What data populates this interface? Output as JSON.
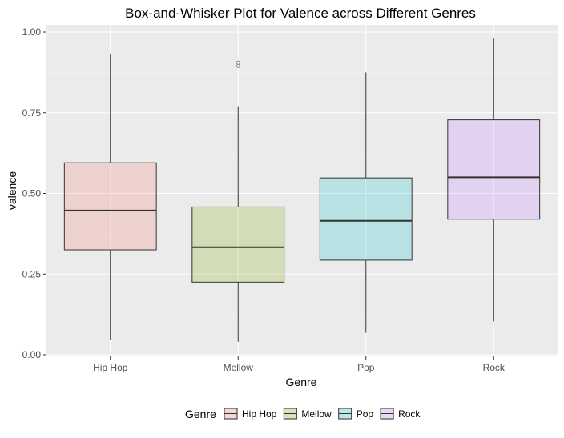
{
  "chart_data": {
    "type": "box",
    "title": "Box-and-Whisker Plot for Valence across Different Genres",
    "xlabel": "Genre",
    "ylabel": "valence",
    "ylim": [
      0.0,
      1.0
    ],
    "yticks": [
      "0.00",
      "0.25",
      "0.50",
      "0.75",
      "1.00"
    ],
    "ytick_values": [
      0.0,
      0.25,
      0.5,
      0.75,
      1.0
    ],
    "categories": [
      "Hip Hop",
      "Mellow",
      "Pop",
      "Rock"
    ],
    "boxes": [
      {
        "name": "Hip Hop",
        "min": 0.045,
        "q1": 0.325,
        "median": 0.447,
        "q3": 0.595,
        "max": 0.932,
        "outliers": [],
        "color": "#f8766d"
      },
      {
        "name": "Mellow",
        "min": 0.04,
        "q1": 0.225,
        "median": 0.333,
        "q3": 0.458,
        "max": 0.768,
        "outliers": [
          0.895,
          0.905
        ],
        "color": "#7cae00"
      },
      {
        "name": "Pop",
        "min": 0.068,
        "q1": 0.293,
        "median": 0.415,
        "q3": 0.548,
        "max": 0.875,
        "outliers": [],
        "color": "#00bfc4"
      },
      {
        "name": "Rock",
        "min": 0.103,
        "q1": 0.42,
        "median": 0.55,
        "q3": 0.728,
        "max": 0.98,
        "outliers": [],
        "color": "#c77cff"
      }
    ],
    "grid": true,
    "legend": {
      "title": "Genre",
      "position": "bottom",
      "entries": [
        "Hip Hop",
        "Mellow",
        "Pop",
        "Rock"
      ]
    }
  }
}
